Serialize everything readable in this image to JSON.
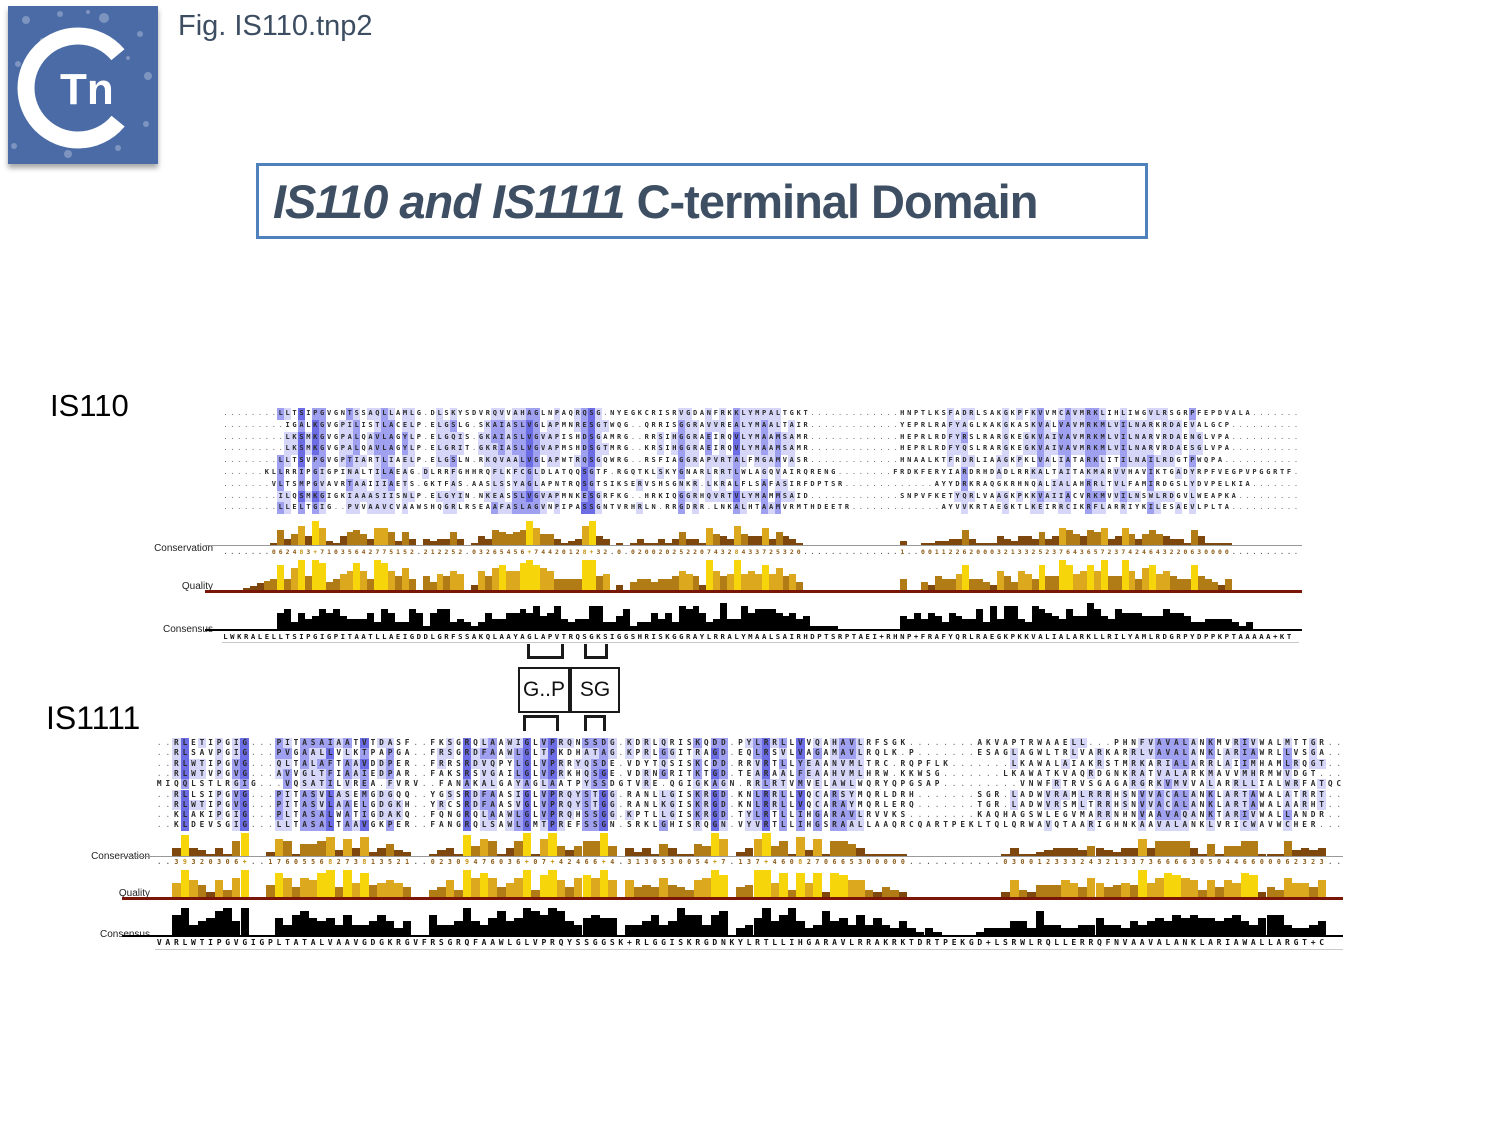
{
  "header": {
    "fig_label": "Fig. IS110.tnp2",
    "logo_text": "Tn"
  },
  "title": {
    "italic": "IS110 and IS1111",
    "rest": " C-terminal Domain"
  },
  "motifs": {
    "gp": "G..P",
    "sg": "SG"
  },
  "track_labels": {
    "conservation": "Conservation",
    "quality": "Quality",
    "consensus": "Consensus"
  },
  "colors": {
    "accent_border": "#4f81bd",
    "heading_text": "#3d4e63",
    "logo_blue": "#4a6ba6",
    "residue_dark": "#6c6ce4",
    "residue_mid": "#a0a0f1",
    "residue_light": "#d6d6f8",
    "bar_yellow": "#f6d60a",
    "bar_gold": "#dca81e",
    "bar_brown": "#b17c16",
    "bar_darkbrown": "#7d470e",
    "quality_baseline": "#7a1608",
    "consensus_bar": "#000000"
  },
  "is110": {
    "label": "IS110",
    "rows": [
      "........LLTSIPGVGNTSSAQLLAMLG.DLSKYSDVRQVVAHAGLNPAQRQSG.NYEGKCRISRVGDANFRKKLYMPALTGKT.............HNPTLKSFADRLSAKGKPFKVVMCAVMRKLIHLIWGVLRSGRPFEPDVALA.......",
      ".........IGALKGVGPILISTLACELP.ELGSLG.SKAIASLVGLAPMNRESGTWQG..QRRISGGRAVVREALYMAALTAIR.............YEPRLRAFYAGLKAKGKASKVALVAVMRKMLVILNARKRDAEVALGCP..........",
      ".........LKSMKGVGPALQAVLAGYLP.ELGQIS.GKAIASLVGVAPISHDSGAMRG..RRSIHGGRAEIRQVLYMAAMSAMR.............HEPRLRDFYRSLRARGKEGKVAIVAVMRKMLVILNARVRDAENGLVPA..........",
      ".........LKSMKGVGPALQAVLAGYLP.ELGRIT.GKRIASLVGVAPMSHDSGTMRG..KRSIHGGRAEIRQVLYMAAMSAMR.............HEPRLRDFYQSLRARGKEGKVAIVAVMRKMLVILNARVRDAESGLVPA..........",
      "........LLTSVPGVGPTIARTLIAELP.ELGSLN.RKQVAALVGLAPWTRQSGQWRG..RSFIAGGRAPVRTALFMGAMVASR.............HNAALKTFRDRLIAAGKPKLVALIATARKLITILNAILRDGTPWQPA...........",
      "......KLLRRIPGIGPINALTILAEAG.DLRRFGHHRQFLKFCGLDLATQQSGTF.RGQTKLSKYGNARLRRTLWLAGQVAIRQRENG........FRDKFERYIARDRHDADLRRKALTAITAKMARVVHAVIKTGADYRPFVEGPVPGGRTF",
      ".......VLTSMPGVAVRTAAIIIAETS.GKTFAS.AASLSSYAGLAPNTRQSGTSIKSERVSHSGNKR.LKRALFLSAFASIRFDPTSR.............AYYDRKRAQGKRHNQALIALAHRRLTVLFAMIRDGSLYDVPELKIA......",
      "........ILQSMKGIGKIAAASIISNLP.ELGYIN.NKEASSLVGVAPMNKESGRFKG..HRKIQGGRHQVRTVLYMAMMSAID.............SNPVFKETYQRLVAAGKPKKVAIIACVRKMVVILNSWLRDGVLWEAPKA.........",
      "........LLELTGIG..PVVAAVCVAAWSHQGRLRSEAAFASLAGVNPIPASSGNTVRHRLN.RRGDRR.LNKALHTAAMVRMTHDEETR.............AYVVKRTAEGKTLKEIRRCIKRFLARRIYKILESAEVLPLTA.........."
    ],
    "conservation": ".......062483+71035642775152.212252.03265456+74420128+32.0.0200202522074328433725320..............1..001122620003213325237643657237424643220630000.........",
    "consensus": "LWKRALELLTSIPGIGPITAATLLAEIGDDLGRFSSAKQLAAYAGLAPVTRQSGKSIGGSHRISKGGRAYLRRALYMAALSAIRHDPTSRPTAEI+RHNP+FRAFYQRLRAEGKPKKVALIALARKLLRILYAMLRDGRPYDPPKPTAAAAA+KT"
  },
  "is1111": {
    "label": "IS1111",
    "rows": [
      "..RLETIPGIG...PITASAIAATVTDASF..FKSGRQLAAWIGLVPRQNSSDG.KDRLQRISKQDD.PYLRRLLVVQAHAVLRFSGK........AKVAPTRWAAELL...PHNFVAVALANKMVRIVWALMTTGR..",
      "..RLSAVPGIG...PVGAALLVLKTPAPGA..FRSGRDFAAWLGLTPKDHATAG.KPRLGGITRAGD.EQLRSVLVAGAMAVLRQLK.P.......ESAGLAGWLTRLVARKARRLVAVALANKLARIAWRLLVSGA..",
      "..RLWTIPGVG...QLTALAFTAAVDDPER..FRRSRDVQPYLGLVPRRYQSDE.VDYTQSISKCDD.RRVRTLLYEAANVMLTRC.RQPFLK.......LKAWALAIAKRSTMRKARIALARRLAIIMHAMLRQGT..",
      "..RLWTVPGVG...AVVGLTFIAAIEDPAR..FAKSRSVGAILGLVPRKHQSGE.VDRNGRITKTGD.TEARAALFEAAHVMLHRW.KKWSG.......LKAWATKVAQRDGNKRATVALARKMAVVMHRMWVDGT..",
      "MIQQLSTLRGIG...VQSATILVREA.FVRV..FANAKALGAYAGLAATPYSSDGTVRE.QGIGKAGN.RRLRTVMVELAWLWQRYQPGSAP.........VNWFRTRVSGAGARGRKVMVVALARRLLIALWRFATQC",
      "..RLLSIPGVG...PITASVLASEMGDGQQ..YGSSRDFAASIGLVPRQYSTGG.RANLLGISKRGD.KNLRRLLVQCARSYMQRLDRH.......SGR.LADWVRAMLRRRHSNVVACALANKLARTAWALATRRT..",
      "..RLWTIPGVG...PITASVLAAELGDGKH..YRCSRDFAASVGLVPRQYSTGG.RANLKGISKRGD.KNLRRLLVQCARAYMQRLERQ.......TGR.LADWVRSMLTRRHSNVVACALANKLARTAWALAARHT..",
      "..KLAKIPGIG...PLTASALWATIGDAKQ..FQNGRQLAAWLGLVPRQHSSGG.KPTLLGISKRGD.TYLRTLLIHGARAVLRVVKS........KAQHAGSWLEGVMARRNHNVAAVAQANKTARIVWALLANDR..",
      "..KLDEVSGIG...LLTASALTAAVGKPER..FANGRQLSAWLGMTPREFSSGN.SRKLGHISRQGN.VYVRTLLIHGSRAALLAAQRCQARTPEKLTQLQRWAVQTAARIGHNKAAVALANKLVRICWAVWCHER.."
    ],
    "conservation": "..39320306+..17605568273813521..02309476036+07+42466+4.3130530054+7.137+4608270665300000...........03001233324321337366663050446600062323..",
    "consensus": "VARLWTIPGVGIGPLTATALVAAVGDGKRGVFRSGRQFAAWLGLVPRQYSSGGSK+RLGGISKRGDNKYLRTLLIHGARAVLRRAKRKTDRTPEKGD+LSRWLRQLLERRQFNVAAVALANKLARIAWALLARGT+C"
  }
}
